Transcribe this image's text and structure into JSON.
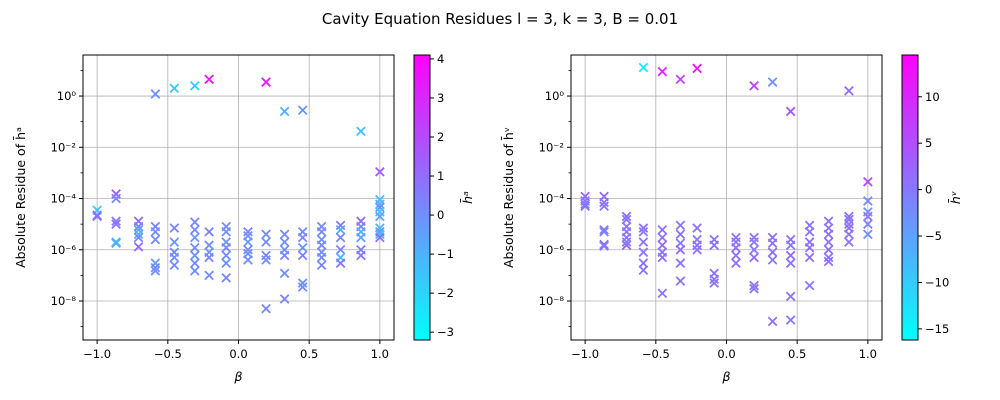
{
  "figure": {
    "title": "Cavity Equation Residues l = 3, k = 3, B = 0.01"
  },
  "chart_data": [
    {
      "type": "scatter",
      "marker": "x",
      "xlabel": "β",
      "ylabel": "Absolute Residue of h̄ᵃ",
      "yscale": "log",
      "xlim": [
        -1.1,
        1.1
      ],
      "ylim": [
        3e-10,
        40
      ],
      "xticks": [
        -1.0,
        -0.5,
        0.0,
        0.5,
        1.0
      ],
      "xtick_labels": [
        "−1.0",
        "−0.5",
        "0.0",
        "0.5",
        "1.0"
      ],
      "yticks": [
        1e-08,
        1e-06,
        0.0001,
        0.01,
        1
      ],
      "ytick_labels": [
        "10⁻⁸",
        "10⁻⁶",
        "10⁻⁴",
        "10⁻²",
        "10⁰"
      ],
      "grid": true,
      "colorbar": {
        "label": "h̄ᵃ",
        "colormap": "cool",
        "range": [
          -3.2,
          4.1
        ],
        "ticks": [
          -3,
          -2,
          -1,
          0,
          1,
          2,
          3,
          4
        ],
        "tick_labels": [
          "−3",
          "−2",
          "−1",
          "0",
          "1",
          "2",
          "3",
          "4"
        ]
      },
      "points": [
        {
          "x": -1.0,
          "y": 3.5e-05,
          "c": -1.6
        },
        {
          "x": -1.0,
          "y": 2.2e-05,
          "c": 1.0
        },
        {
          "x": -1.0,
          "y": 2e-05,
          "c": 0.6
        },
        {
          "x": -0.866,
          "y": 0.00015,
          "c": 1.4
        },
        {
          "x": -0.866,
          "y": 0.0001,
          "c": 0.2
        },
        {
          "x": -0.866,
          "y": 1.3e-05,
          "c": 0.5
        },
        {
          "x": -0.866,
          "y": 1e-05,
          "c": 0.9
        },
        {
          "x": -0.866,
          "y": 2e-06,
          "c": -1.3
        },
        {
          "x": -0.866,
          "y": 1.8e-06,
          "c": -0.9
        },
        {
          "x": -0.707,
          "y": 1.3e-05,
          "c": 1.2
        },
        {
          "x": -0.707,
          "y": 8e-06,
          "c": 0.5
        },
        {
          "x": -0.707,
          "y": 6e-06,
          "c": -0.8
        },
        {
          "x": -0.707,
          "y": 4e-06,
          "c": -1.0
        },
        {
          "x": -0.707,
          "y": 3e-06,
          "c": 0.2
        },
        {
          "x": -0.707,
          "y": 1.3e-06,
          "c": 1.0
        },
        {
          "x": -0.588,
          "y": 1.2,
          "c": -0.1
        },
        {
          "x": -0.588,
          "y": 8e-06,
          "c": 0.4
        },
        {
          "x": -0.588,
          "y": 5e-06,
          "c": 0.1
        },
        {
          "x": -0.588,
          "y": 2.5e-06,
          "c": 0.0
        },
        {
          "x": -0.588,
          "y": 3e-07,
          "c": -0.4
        },
        {
          "x": -0.588,
          "y": 2e-07,
          "c": 0.2
        },
        {
          "x": -0.588,
          "y": 1.5e-07,
          "c": -0.1
        },
        {
          "x": -0.454,
          "y": 2.0,
          "c": -1.6
        },
        {
          "x": -0.454,
          "y": 7e-06,
          "c": 0.3
        },
        {
          "x": -0.454,
          "y": 2e-06,
          "c": -0.2
        },
        {
          "x": -0.454,
          "y": 8e-07,
          "c": 0.2
        },
        {
          "x": -0.454,
          "y": 5e-07,
          "c": 0.0
        },
        {
          "x": -0.454,
          "y": 2.5e-07,
          "c": 0.1
        },
        {
          "x": -0.309,
          "y": 2.5,
          "c": -1.7
        },
        {
          "x": -0.309,
          "y": 1.2e-05,
          "c": 0.2
        },
        {
          "x": -0.309,
          "y": 6e-06,
          "c": 0.3
        },
        {
          "x": -0.309,
          "y": 3e-06,
          "c": -0.2
        },
        {
          "x": -0.309,
          "y": 1.2e-06,
          "c": 0.1
        },
        {
          "x": -0.309,
          "y": 6e-07,
          "c": 0.0
        },
        {
          "x": -0.309,
          "y": 3e-07,
          "c": 0.2
        },
        {
          "x": -0.309,
          "y": 1.5e-07,
          "c": 0.0
        },
        {
          "x": -0.208,
          "y": 4.5,
          "c": 3.6
        },
        {
          "x": -0.208,
          "y": 5e-06,
          "c": 0.4
        },
        {
          "x": -0.208,
          "y": 1.5e-06,
          "c": 0.1
        },
        {
          "x": -0.208,
          "y": 8e-07,
          "c": -0.1
        },
        {
          "x": -0.208,
          "y": 5e-07,
          "c": 0.3
        },
        {
          "x": -0.208,
          "y": 1e-07,
          "c": 0.0
        },
        {
          "x": -0.087,
          "y": 8e-06,
          "c": 0.2
        },
        {
          "x": -0.087,
          "y": 5e-06,
          "c": 0.0
        },
        {
          "x": -0.087,
          "y": 2e-06,
          "c": -0.1
        },
        {
          "x": -0.087,
          "y": 1.2e-06,
          "c": 0.3
        },
        {
          "x": -0.087,
          "y": 6e-07,
          "c": 0.1
        },
        {
          "x": -0.087,
          "y": 3e-07,
          "c": 0.0
        },
        {
          "x": -0.087,
          "y": 8e-08,
          "c": 0.2
        },
        {
          "x": 0.067,
          "y": 5e-06,
          "c": 0.3
        },
        {
          "x": 0.067,
          "y": 3.5e-06,
          "c": 0.1
        },
        {
          "x": 0.067,
          "y": 2e-06,
          "c": -0.2
        },
        {
          "x": 0.067,
          "y": 1e-06,
          "c": 0.2
        },
        {
          "x": 0.067,
          "y": 7e-07,
          "c": 0.0
        },
        {
          "x": 0.067,
          "y": 4e-07,
          "c": 0.1
        },
        {
          "x": 0.195,
          "y": 3.5,
          "c": 3.4
        },
        {
          "x": 0.195,
          "y": 4e-06,
          "c": 0.2
        },
        {
          "x": 0.195,
          "y": 2e-06,
          "c": 0.0
        },
        {
          "x": 0.195,
          "y": 6e-07,
          "c": 0.3
        },
        {
          "x": 0.195,
          "y": 4e-07,
          "c": 0.1
        },
        {
          "x": 0.195,
          "y": 5e-09,
          "c": 0.2
        },
        {
          "x": 0.326,
          "y": 0.25,
          "c": -0.9
        },
        {
          "x": 0.326,
          "y": 4e-06,
          "c": 0.2
        },
        {
          "x": 0.326,
          "y": 2e-06,
          "c": 0.1
        },
        {
          "x": 0.326,
          "y": 1e-06,
          "c": -0.1
        },
        {
          "x": 0.326,
          "y": 6e-07,
          "c": 0.3
        },
        {
          "x": 0.326,
          "y": 1.2e-07,
          "c": 0.0
        },
        {
          "x": 0.326,
          "y": 1.2e-08,
          "c": 0.3
        },
        {
          "x": 0.454,
          "y": 0.28,
          "c": -0.2
        },
        {
          "x": 0.454,
          "y": 5e-06,
          "c": 0.1
        },
        {
          "x": 0.454,
          "y": 3e-06,
          "c": 0.2
        },
        {
          "x": 0.454,
          "y": 1.2e-06,
          "c": -0.1
        },
        {
          "x": 0.454,
          "y": 6e-07,
          "c": 0.3
        },
        {
          "x": 0.454,
          "y": 5e-08,
          "c": 0.0
        },
        {
          "x": 0.454,
          "y": 3.5e-08,
          "c": 0.1
        },
        {
          "x": 0.588,
          "y": 8e-06,
          "c": 0.1
        },
        {
          "x": 0.588,
          "y": 5e-06,
          "c": 0.3
        },
        {
          "x": 0.588,
          "y": 2.5e-06,
          "c": -0.1
        },
        {
          "x": 0.588,
          "y": 1.5e-06,
          "c": 0.2
        },
        {
          "x": 0.588,
          "y": 8e-07,
          "c": 0.0
        },
        {
          "x": 0.588,
          "y": 5e-07,
          "c": 0.1
        },
        {
          "x": 0.588,
          "y": 2.5e-07,
          "c": 0.2
        },
        {
          "x": 0.722,
          "y": 9e-06,
          "c": 0.6
        },
        {
          "x": 0.722,
          "y": 6e-06,
          "c": -0.8
        },
        {
          "x": 0.722,
          "y": 3e-06,
          "c": 0.2
        },
        {
          "x": 0.722,
          "y": 1e-06,
          "c": 0.4
        },
        {
          "x": 0.722,
          "y": 5e-07,
          "c": -1.2
        },
        {
          "x": 0.722,
          "y": 3e-07,
          "c": 0.8
        },
        {
          "x": 0.866,
          "y": 0.042,
          "c": -1.4
        },
        {
          "x": 0.866,
          "y": 1.3e-05,
          "c": 1.1
        },
        {
          "x": 0.866,
          "y": 8e-06,
          "c": 0.3
        },
        {
          "x": 0.866,
          "y": 5e-06,
          "c": -1.0
        },
        {
          "x": 0.866,
          "y": 3e-06,
          "c": -0.6
        },
        {
          "x": 0.866,
          "y": 1e-06,
          "c": 0.4
        },
        {
          "x": 0.866,
          "y": 6e-07,
          "c": 0.7
        },
        {
          "x": 1.0,
          "y": 0.0011,
          "c": 1.5
        },
        {
          "x": 1.0,
          "y": 9e-05,
          "c": -1.3
        },
        {
          "x": 1.0,
          "y": 6e-05,
          "c": -1.0
        },
        {
          "x": 1.0,
          "y": 4.5e-05,
          "c": 0.2
        },
        {
          "x": 1.0,
          "y": 3e-05,
          "c": -1.6
        },
        {
          "x": 1.0,
          "y": 2e-05,
          "c": -0.5
        },
        {
          "x": 1.0,
          "y": 7e-06,
          "c": -1.1
        },
        {
          "x": 1.0,
          "y": 5e-06,
          "c": -0.3
        },
        {
          "x": 1.0,
          "y": 4e-06,
          "c": -1.4
        },
        {
          "x": 1.0,
          "y": 3e-06,
          "c": 0.9
        }
      ]
    },
    {
      "type": "scatter",
      "marker": "x",
      "xlabel": "β",
      "ylabel": "Absolute Residue of h̄ᵛ",
      "yscale": "log",
      "xlim": [
        -1.1,
        1.1
      ],
      "ylim": [
        3e-10,
        40
      ],
      "xticks": [
        -1.0,
        -0.5,
        0.0,
        0.5,
        1.0
      ],
      "xtick_labels": [
        "−1.0",
        "−0.5",
        "0.0",
        "0.5",
        "1.0"
      ],
      "yticks": [
        1e-08,
        1e-06,
        0.0001,
        0.01,
        1
      ],
      "ytick_labels": [
        "10⁻⁸",
        "10⁻⁶",
        "10⁻⁴",
        "10⁻²",
        "10⁰"
      ],
      "grid": true,
      "colorbar": {
        "label": "h̄ᵛ",
        "colormap": "cool",
        "range": [
          -16.2,
          14.5
        ],
        "ticks": [
          -15,
          -10,
          -5,
          0,
          5,
          10
        ],
        "tick_labels": [
          "−15",
          "−10",
          "−5",
          "0",
          "5",
          "10"
        ]
      },
      "points": [
        {
          "x": -1.0,
          "y": 0.00012,
          "c": 2.0
        },
        {
          "x": -1.0,
          "y": 8e-05,
          "c": 0.5
        },
        {
          "x": -1.0,
          "y": 6e-05,
          "c": -1.0
        },
        {
          "x": -1.0,
          "y": 5e-05,
          "c": 1.0
        },
        {
          "x": -0.866,
          "y": 0.00012,
          "c": 2.0
        },
        {
          "x": -0.866,
          "y": 7e-05,
          "c": 0.0
        },
        {
          "x": -0.866,
          "y": 5e-05,
          "c": 1.0
        },
        {
          "x": -0.866,
          "y": 6e-06,
          "c": 0.5
        },
        {
          "x": -0.866,
          "y": 5e-06,
          "c": -1.5
        },
        {
          "x": -0.866,
          "y": 1.6e-06,
          "c": 1.0
        },
        {
          "x": -0.866,
          "y": 1.4e-06,
          "c": 0.0
        },
        {
          "x": -0.707,
          "y": 2e-05,
          "c": 1.5
        },
        {
          "x": -0.707,
          "y": 1.5e-05,
          "c": 0.0
        },
        {
          "x": -0.707,
          "y": 8e-06,
          "c": 1.0
        },
        {
          "x": -0.707,
          "y": 5e-06,
          "c": 0.5
        },
        {
          "x": -0.707,
          "y": 3e-06,
          "c": 1.0
        },
        {
          "x": -0.707,
          "y": 2e-06,
          "c": 0.0
        },
        {
          "x": -0.707,
          "y": 1.5e-06,
          "c": 1.5
        },
        {
          "x": -0.588,
          "y": 13.0,
          "c": -15.0
        },
        {
          "x": -0.588,
          "y": 7e-06,
          "c": 1.5
        },
        {
          "x": -0.588,
          "y": 5e-06,
          "c": 0.0
        },
        {
          "x": -0.588,
          "y": 2e-06,
          "c": 1.0
        },
        {
          "x": -0.588,
          "y": 8e-07,
          "c": 0.5
        },
        {
          "x": -0.588,
          "y": 3e-07,
          "c": 1.0
        },
        {
          "x": -0.588,
          "y": 1.6e-07,
          "c": 0.0
        },
        {
          "x": -0.454,
          "y": 9.0,
          "c": 10.0
        },
        {
          "x": -0.454,
          "y": 6e-06,
          "c": 1.0
        },
        {
          "x": -0.454,
          "y": 3e-06,
          "c": 0.0
        },
        {
          "x": -0.454,
          "y": 1.5e-06,
          "c": 1.5
        },
        {
          "x": -0.454,
          "y": 8e-07,
          "c": 0.5
        },
        {
          "x": -0.454,
          "y": 5e-07,
          "c": 1.0
        },
        {
          "x": -0.454,
          "y": 2e-08,
          "c": 0.5
        },
        {
          "x": -0.326,
          "y": 4.5,
          "c": 6.0
        },
        {
          "x": -0.326,
          "y": 9e-06,
          "c": 0.5
        },
        {
          "x": -0.326,
          "y": 4e-06,
          "c": 1.0
        },
        {
          "x": -0.326,
          "y": 1.8e-06,
          "c": 0.0
        },
        {
          "x": -0.326,
          "y": 1e-06,
          "c": 1.5
        },
        {
          "x": -0.326,
          "y": 3e-07,
          "c": 1.0
        },
        {
          "x": -0.326,
          "y": 6e-08,
          "c": 0.5
        },
        {
          "x": -0.208,
          "y": 12.0,
          "c": 12.0
        },
        {
          "x": -0.208,
          "y": 7e-06,
          "c": 1.0
        },
        {
          "x": -0.208,
          "y": 2.5e-06,
          "c": 0.0
        },
        {
          "x": -0.208,
          "y": 1.5e-06,
          "c": 1.5
        },
        {
          "x": -0.208,
          "y": 1e-06,
          "c": 0.5
        },
        {
          "x": -0.087,
          "y": 2.5e-06,
          "c": 1.0
        },
        {
          "x": -0.087,
          "y": 1.5e-06,
          "c": 0.5
        },
        {
          "x": -0.087,
          "y": 1.2e-07,
          "c": 1.5
        },
        {
          "x": -0.087,
          "y": 7e-08,
          "c": 0.0
        },
        {
          "x": -0.087,
          "y": 5e-08,
          "c": 1.0
        },
        {
          "x": 0.067,
          "y": 3e-06,
          "c": 1.0
        },
        {
          "x": 0.067,
          "y": 2e-06,
          "c": 0.0
        },
        {
          "x": 0.067,
          "y": 1.2e-06,
          "c": 1.5
        },
        {
          "x": 0.067,
          "y": 6e-07,
          "c": 0.5
        },
        {
          "x": 0.067,
          "y": 3e-07,
          "c": 1.0
        },
        {
          "x": 0.195,
          "y": 2.5,
          "c": 6.5
        },
        {
          "x": 0.195,
          "y": 3e-06,
          "c": 1.0
        },
        {
          "x": 0.195,
          "y": 2e-06,
          "c": 0.5
        },
        {
          "x": 0.195,
          "y": 1e-06,
          "c": 0.0
        },
        {
          "x": 0.195,
          "y": 5e-07,
          "c": 1.5
        },
        {
          "x": 0.195,
          "y": 4e-08,
          "c": 1.0
        },
        {
          "x": 0.195,
          "y": 3e-08,
          "c": 0.5
        },
        {
          "x": 0.326,
          "y": 3.5,
          "c": -3.0
        },
        {
          "x": 0.326,
          "y": 3e-06,
          "c": 1.0
        },
        {
          "x": 0.326,
          "y": 1.8e-06,
          "c": 0.5
        },
        {
          "x": 0.326,
          "y": 8e-07,
          "c": 1.5
        },
        {
          "x": 0.326,
          "y": 4e-07,
          "c": 0.0
        },
        {
          "x": 0.326,
          "y": 1.6e-09,
          "c": 1.0
        },
        {
          "x": 0.454,
          "y": 0.25,
          "c": 4.5
        },
        {
          "x": 0.454,
          "y": 2.5e-06,
          "c": 1.0
        },
        {
          "x": 0.454,
          "y": 1.5e-06,
          "c": 0.0
        },
        {
          "x": 0.454,
          "y": 6e-07,
          "c": 1.5
        },
        {
          "x": 0.454,
          "y": 3e-07,
          "c": 0.5
        },
        {
          "x": 0.454,
          "y": 1.5e-08,
          "c": 1.0
        },
        {
          "x": 0.454,
          "y": 1.8e-09,
          "c": 0.5
        },
        {
          "x": 0.588,
          "y": 9e-06,
          "c": 1.0
        },
        {
          "x": 0.588,
          "y": 5e-06,
          "c": 0.0
        },
        {
          "x": 0.588,
          "y": 2e-06,
          "c": 1.5
        },
        {
          "x": 0.588,
          "y": 1.2e-06,
          "c": 0.5
        },
        {
          "x": 0.588,
          "y": 5e-07,
          "c": 1.0
        },
        {
          "x": 0.588,
          "y": 4e-08,
          "c": 0.0
        },
        {
          "x": 0.722,
          "y": 1.3e-05,
          "c": 1.0
        },
        {
          "x": 0.722,
          "y": 7e-06,
          "c": 0.0
        },
        {
          "x": 0.722,
          "y": 4e-06,
          "c": 1.5
        },
        {
          "x": 0.722,
          "y": 2e-06,
          "c": 0.5
        },
        {
          "x": 0.722,
          "y": 1e-06,
          "c": 1.0
        },
        {
          "x": 0.722,
          "y": 5e-07,
          "c": 0.0
        },
        {
          "x": 0.722,
          "y": 3.5e-07,
          "c": 1.5
        },
        {
          "x": 0.866,
          "y": 1.6,
          "c": 2.0
        },
        {
          "x": 0.866,
          "y": 2e-05,
          "c": 0.5
        },
        {
          "x": 0.866,
          "y": 1.5e-05,
          "c": 1.0
        },
        {
          "x": 0.866,
          "y": 1e-05,
          "c": 0.0
        },
        {
          "x": 0.866,
          "y": 7e-06,
          "c": 1.5
        },
        {
          "x": 0.866,
          "y": 4e-06,
          "c": 0.5
        },
        {
          "x": 0.866,
          "y": 2e-06,
          "c": 1.0
        },
        {
          "x": 1.0,
          "y": 0.00045,
          "c": 6.0
        },
        {
          "x": 1.0,
          "y": 8e-05,
          "c": -2.0
        },
        {
          "x": 1.0,
          "y": 3e-05,
          "c": -3.0
        },
        {
          "x": 1.0,
          "y": 2e-05,
          "c": 1.0
        },
        {
          "x": 1.0,
          "y": 1e-05,
          "c": -1.0
        },
        {
          "x": 1.0,
          "y": 4e-06,
          "c": -2.5
        }
      ]
    }
  ]
}
